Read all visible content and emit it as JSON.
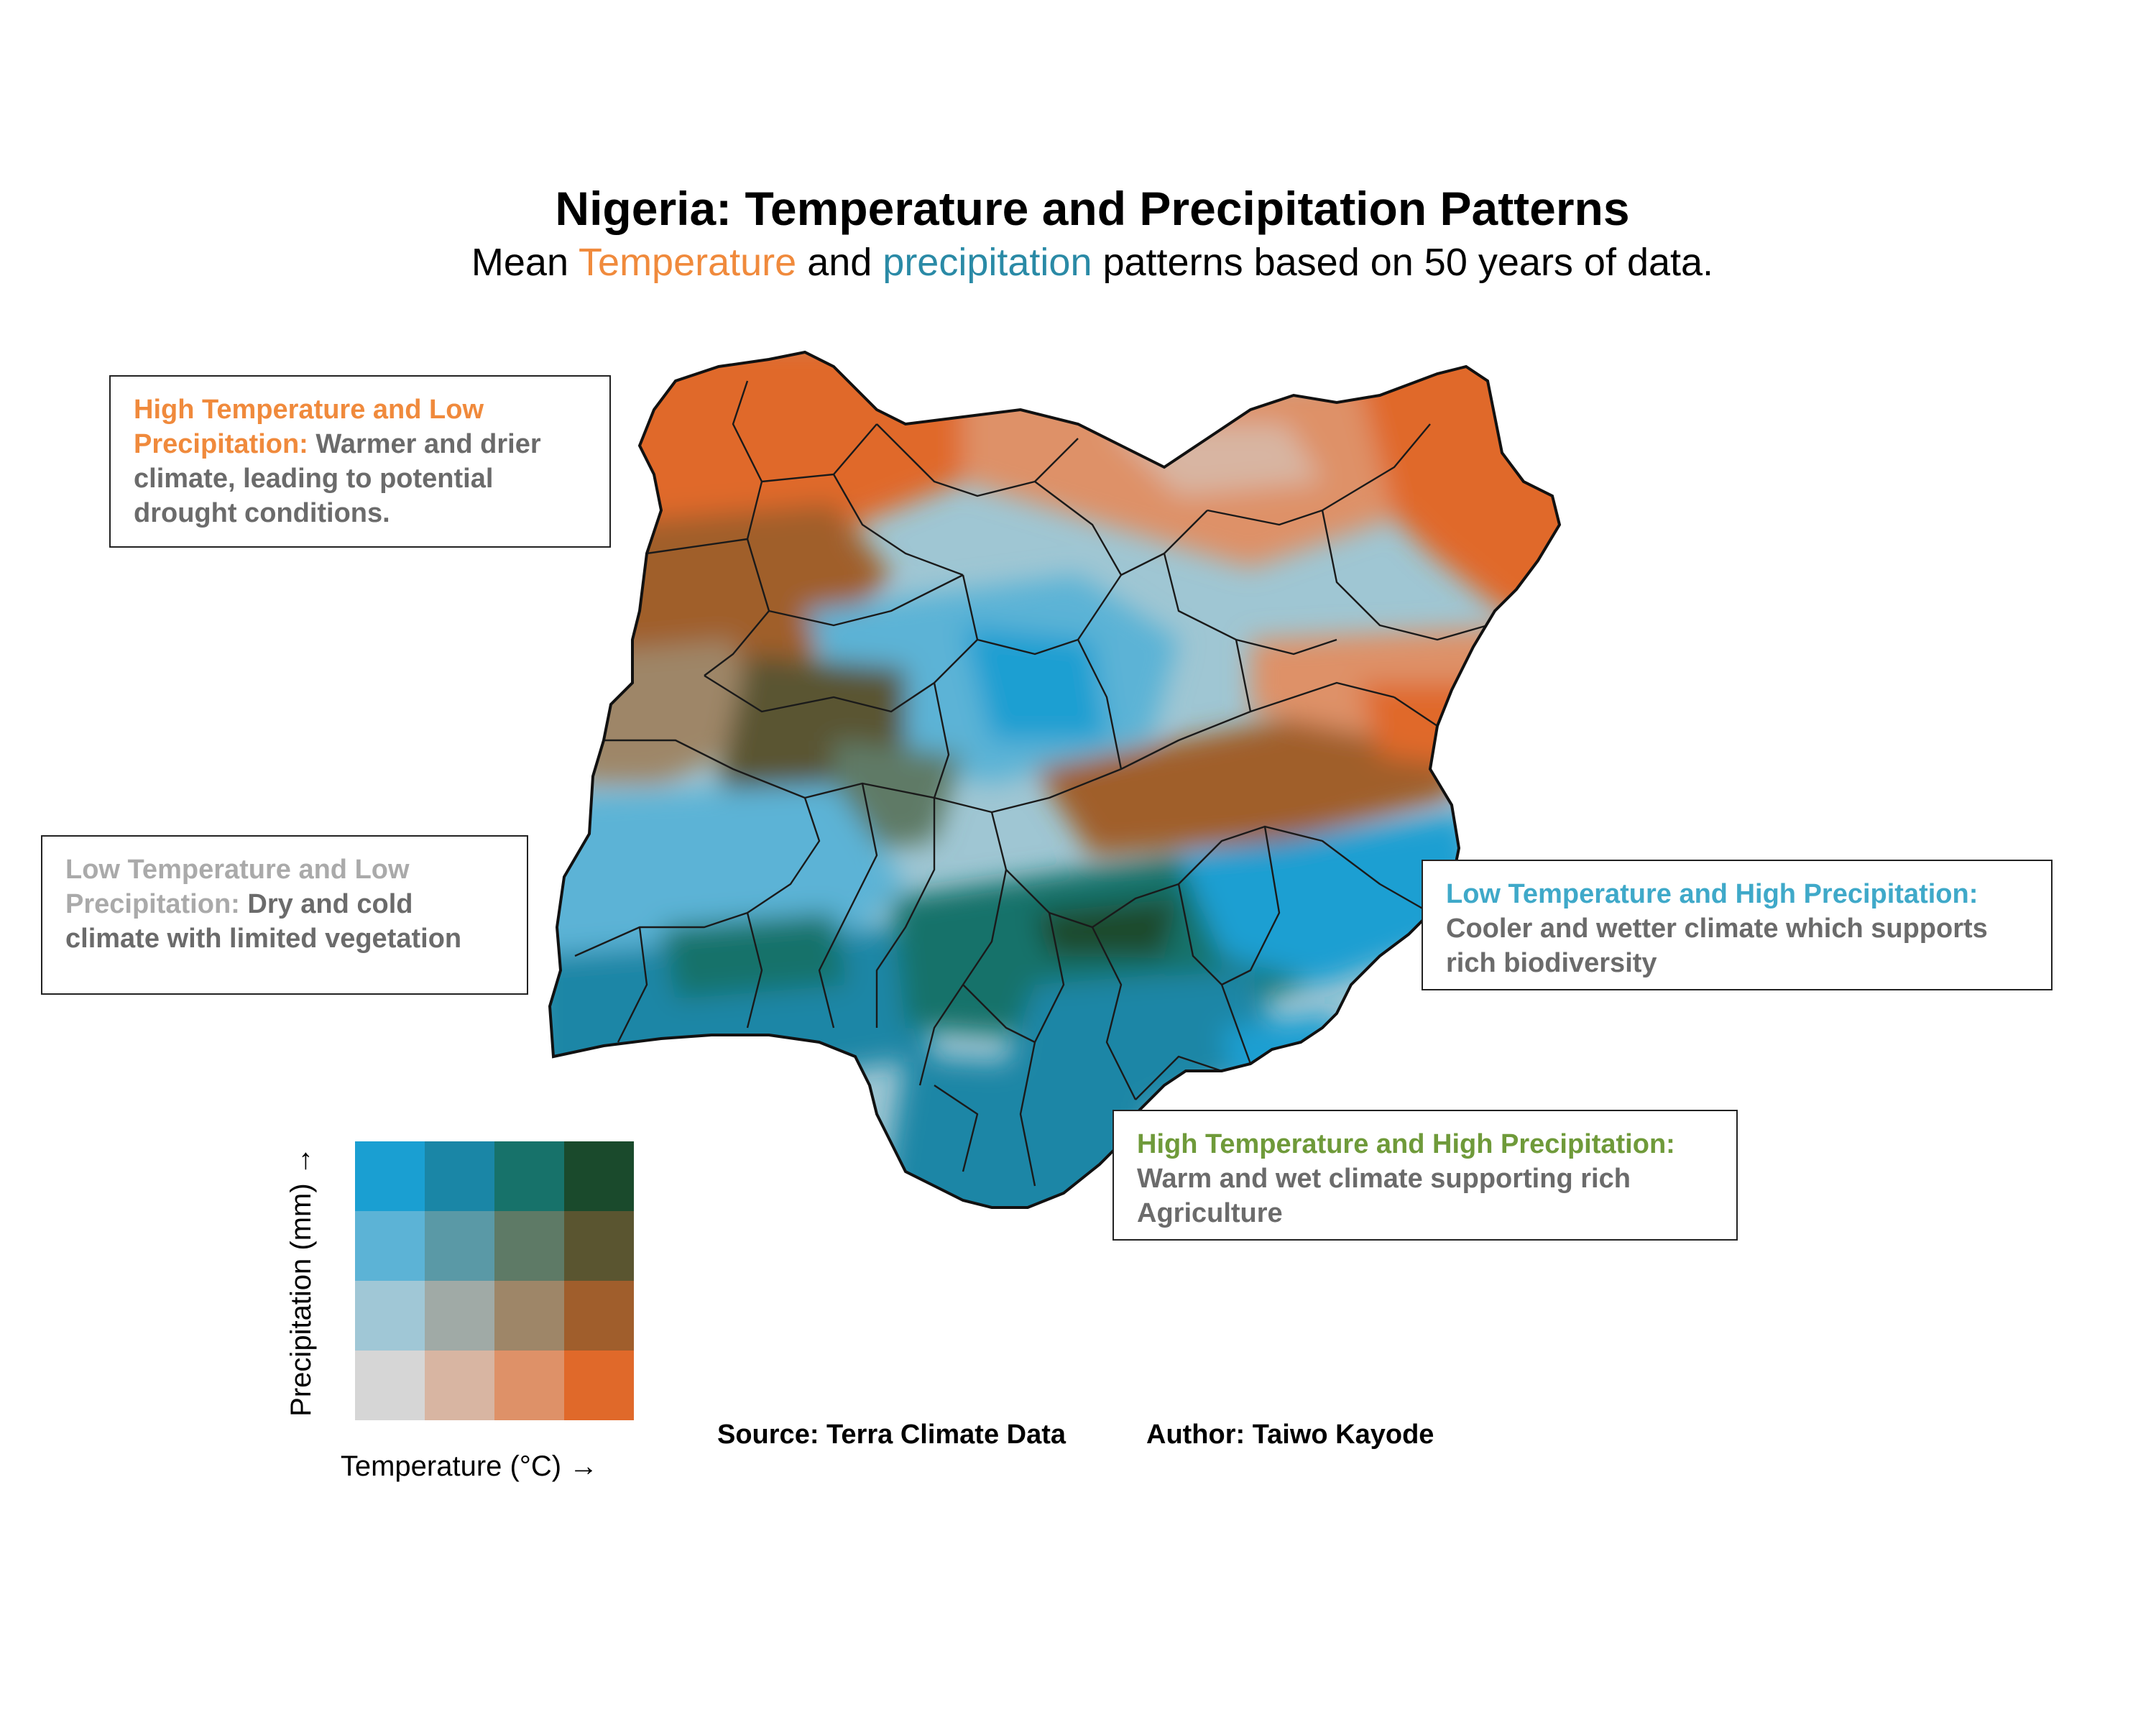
{
  "header": {
    "title": "Nigeria: Temperature and Precipitation Patterns",
    "subtitle_parts": [
      "Mean ",
      "Temperature",
      " and ",
      "precipitation",
      " patterns based on 50 years of data."
    ]
  },
  "callouts": [
    {
      "id": "hthp_low",
      "head": "High Temperature and Low Precipitation:",
      "body": " Warmer and drier climate, leading to potential drought conditions.",
      "head_color": "#f08a3c"
    },
    {
      "id": "ltlp",
      "head": "Low Temperature and Low Precipitation:",
      "body": " Dry and cold climate with limited vegetation",
      "head_color": "#aaaaaa"
    },
    {
      "id": "lthp",
      "head": "Low Temperature and High Precipitation:",
      "body": " Cooler and wetter climate which supports rich biodiversity",
      "head_color": "#3fa9c9"
    },
    {
      "id": "hthp",
      "head": "High Temperature and High Precipitation:",
      "body": " Warm and wet climate supporting rich Agriculture",
      "head_color": "#6f9a3a"
    }
  ],
  "legend": {
    "x_label": "Temperature (°C) →",
    "y_label": "Precipitation (mm) →",
    "palette_rows_top_to_bottom": [
      [
        "#1a9fd2",
        "#1a86a6",
        "#17726a",
        "#1a4a2c"
      ],
      [
        "#5cb3d6",
        "#5a99a6",
        "#5e7a66",
        "#5a5530"
      ],
      [
        "#a0c7d6",
        "#a0aaa6",
        "#9e8668",
        "#a05e2c"
      ],
      [
        "#d6d6d6",
        "#d8b5a2",
        "#de9168",
        "#e0692a"
      ]
    ]
  },
  "footer": {
    "source": "Source: Terra Climate Data",
    "author": "Author: Taiwo Kayode"
  },
  "colors": {
    "temperature_accent": "#f08a3c",
    "precipitation_accent": "#2a8aa6"
  }
}
